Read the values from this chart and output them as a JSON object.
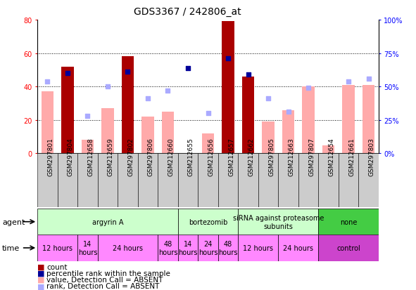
{
  "title": "GDS3367 / 242806_at",
  "samples": [
    "GSM297801",
    "GSM297804",
    "GSM212658",
    "GSM212659",
    "GSM297802",
    "GSM297806",
    "GSM212660",
    "GSM212655",
    "GSM212656",
    "GSM212657",
    "GSM212662",
    "GSM297805",
    "GSM212663",
    "GSM297807",
    "GSM212654",
    "GSM212661",
    "GSM297803"
  ],
  "count_present": [
    null,
    52,
    null,
    null,
    58,
    null,
    null,
    null,
    null,
    79,
    46,
    null,
    null,
    null,
    null,
    null,
    null
  ],
  "count_absent": [
    37,
    null,
    8,
    27,
    null,
    22,
    25,
    null,
    12,
    null,
    null,
    19,
    26,
    40,
    5,
    41,
    41
  ],
  "rank_present": [
    null,
    60,
    null,
    null,
    61,
    null,
    null,
    64,
    null,
    71,
    59,
    null,
    null,
    null,
    null,
    null,
    null
  ],
  "rank_absent": [
    54,
    null,
    28,
    50,
    null,
    41,
    47,
    null,
    30,
    null,
    null,
    41,
    31,
    49,
    null,
    54,
    56
  ],
  "agent_groups": [
    {
      "label": "argyrin A",
      "start": 0,
      "end": 7,
      "color": "#ccffcc"
    },
    {
      "label": "bortezomib",
      "start": 7,
      "end": 10,
      "color": "#ccffcc"
    },
    {
      "label": "siRNA against proteasome\nsubunits",
      "start": 10,
      "end": 14,
      "color": "#ccffcc"
    },
    {
      "label": "none",
      "start": 14,
      "end": 17,
      "color": "#44cc44"
    }
  ],
  "time_groups": [
    {
      "label": "12 hours",
      "start": 0,
      "end": 2,
      "color": "#ff88ff"
    },
    {
      "label": "14\nhours",
      "start": 2,
      "end": 3,
      "color": "#ff88ff"
    },
    {
      "label": "24 hours",
      "start": 3,
      "end": 6,
      "color": "#ff88ff"
    },
    {
      "label": "48\nhours",
      "start": 6,
      "end": 7,
      "color": "#ff88ff"
    },
    {
      "label": "14\nhours",
      "start": 7,
      "end": 8,
      "color": "#ff88ff"
    },
    {
      "label": "24\nhours",
      "start": 8,
      "end": 9,
      "color": "#ff88ff"
    },
    {
      "label": "48\nhours",
      "start": 9,
      "end": 10,
      "color": "#ff88ff"
    },
    {
      "label": "12 hours",
      "start": 10,
      "end": 12,
      "color": "#ff88ff"
    },
    {
      "label": "24 hours",
      "start": 12,
      "end": 14,
      "color": "#ff88ff"
    },
    {
      "label": "control",
      "start": 14,
      "end": 17,
      "color": "#cc44cc"
    }
  ],
  "ylim_left": [
    0,
    80
  ],
  "ylim_right": [
    0,
    100
  ],
  "yticks_left": [
    0,
    20,
    40,
    60,
    80
  ],
  "yticks_right": [
    0,
    25,
    50,
    75,
    100
  ],
  "yticklabels_right": [
    "0%",
    "25%",
    "50%",
    "75%",
    "100%"
  ],
  "color_present_bar": "#aa0000",
  "color_absent_bar": "#ffaaaa",
  "color_present_rank": "#000099",
  "color_absent_rank": "#aaaaff",
  "background_color": "#ffffff"
}
